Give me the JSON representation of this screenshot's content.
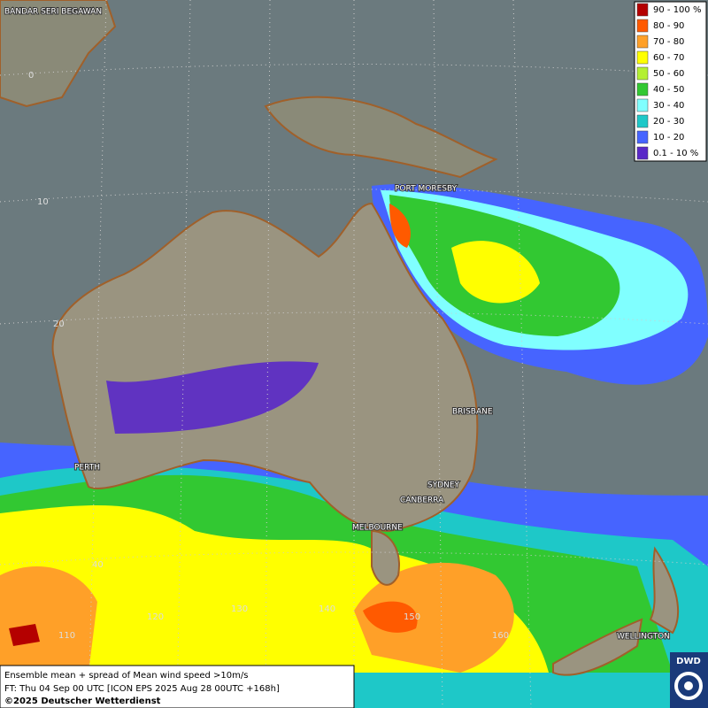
{
  "legend": {
    "entries": [
      {
        "label": "90 - 100 %",
        "color": "#b40000"
      },
      {
        "label": "80 - 90",
        "color": "#ff5a00"
      },
      {
        "label": "70 - 80",
        "color": "#ffa028"
      },
      {
        "label": "60 - 70",
        "color": "#ffff00"
      },
      {
        "label": "50 - 60",
        "color": "#b4f032"
      },
      {
        "label": "40 - 50",
        "color": "#32c832"
      },
      {
        "label": "30 - 40",
        "color": "#80ffff"
      },
      {
        "label": "20 - 30",
        "color": "#1ec8c8"
      },
      {
        "label": "10 - 20",
        "color": "#4664ff"
      },
      {
        "label": "0.1 - 10 %",
        "color": "#5a28c8"
      }
    ]
  },
  "cities": [
    "BANDAR SERI BEGAWAN",
    "PORT MORESBY",
    "BRISBANE",
    "PERTH",
    "SYDNEY",
    "CANBERRA",
    "MELBOURNE",
    "WELLINGTON"
  ],
  "latitude_labels": [
    "0",
    "10",
    "20",
    "40"
  ],
  "longitude_labels": [
    "110",
    "120",
    "130",
    "140",
    "150",
    "160"
  ],
  "caption": {
    "line1": "Ensemble mean + spread of Mean wind speed >10m/s",
    "line2": "FT: Thu 04 Sep 00 UTC [ICON EPS 2025 Aug 28 00UTC +168h]",
    "copyright": "©2025 Deutscher Wetterdienst"
  },
  "logo": "DWD"
}
